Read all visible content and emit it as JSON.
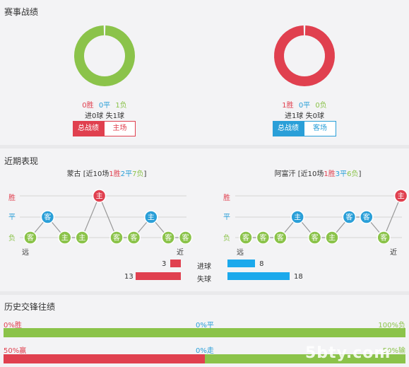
{
  "sections": {
    "record": "赛事战绩",
    "recent": "近期表现",
    "history": "历史交锋往绩"
  },
  "colors": {
    "win": "#e0404f",
    "draw": "#2a9fd8",
    "loss": "#8bc34a"
  },
  "left_team": {
    "donut": {
      "win": 0,
      "draw": 0,
      "loss": 1
    },
    "wins": "0胜",
    "draws": "0平",
    "losses": "1负",
    "goals_line": "进0球 失1球",
    "btn_total": "总战绩",
    "btn_side": "主场"
  },
  "right_team": {
    "donut": {
      "win": 1,
      "draw": 0,
      "loss": 0
    },
    "wins": "1胜",
    "draws": "0平",
    "losses": "0负",
    "goals_line": "进1球 失0球",
    "btn_total": "总战绩",
    "btn_side": "客场"
  },
  "recent": {
    "level_labels": {
      "win": "胜",
      "draw": "平",
      "loss": "负"
    },
    "far": "远",
    "near": "近",
    "left": {
      "name": "蒙古",
      "prefix": "[近10场",
      "wins": "1胜",
      "draws": "2平",
      "losses": "7负",
      "suffix": "]",
      "matches": [
        {
          "venue": "客",
          "result": "loss"
        },
        {
          "venue": "客",
          "result": "draw"
        },
        {
          "venue": "主",
          "result": "loss"
        },
        {
          "venue": "主",
          "result": "loss"
        },
        {
          "venue": "主",
          "result": "win"
        },
        {
          "venue": "客",
          "result": "loss"
        },
        {
          "venue": "客",
          "result": "loss"
        },
        {
          "venue": "主",
          "result": "draw"
        },
        {
          "venue": "客",
          "result": "loss"
        },
        {
          "venue": "客",
          "result": "loss"
        }
      ]
    },
    "right": {
      "name": "阿富汗",
      "prefix": "[近10场",
      "wins": "1胜",
      "draws": "3平",
      "losses": "6负",
      "suffix": "]",
      "matches": [
        {
          "venue": "客",
          "result": "loss"
        },
        {
          "venue": "客",
          "result": "loss"
        },
        {
          "venue": "客",
          "result": "loss"
        },
        {
          "venue": "主",
          "result": "draw"
        },
        {
          "venue": "客",
          "result": "loss"
        },
        {
          "venue": "主",
          "result": "loss"
        },
        {
          "venue": "客",
          "result": "draw"
        },
        {
          "venue": "客",
          "result": "draw"
        },
        {
          "venue": "客",
          "result": "loss"
        },
        {
          "venue": "主",
          "result": "win"
        }
      ]
    }
  },
  "goals": {
    "scored_label": "进球",
    "conceded_label": "失球",
    "left_scored": "3",
    "left_conceded": "13",
    "right_scored": "8",
    "right_conceded": "18",
    "values": {
      "left_scored": 3,
      "left_conceded": 13,
      "right_scored": 8,
      "right_conceded": 18
    }
  },
  "history": {
    "row1": {
      "left": "0%胜",
      "mid": "0%平",
      "right": "100%负",
      "left_pct": 0,
      "mid_pct": 0,
      "right_pct": 100
    },
    "row2": {
      "left": "50%赢",
      "mid": "0%走",
      "right": "50%输",
      "left_pct": 50,
      "mid_pct": 0,
      "right_pct": 50
    }
  },
  "watermark": "5bty.com"
}
